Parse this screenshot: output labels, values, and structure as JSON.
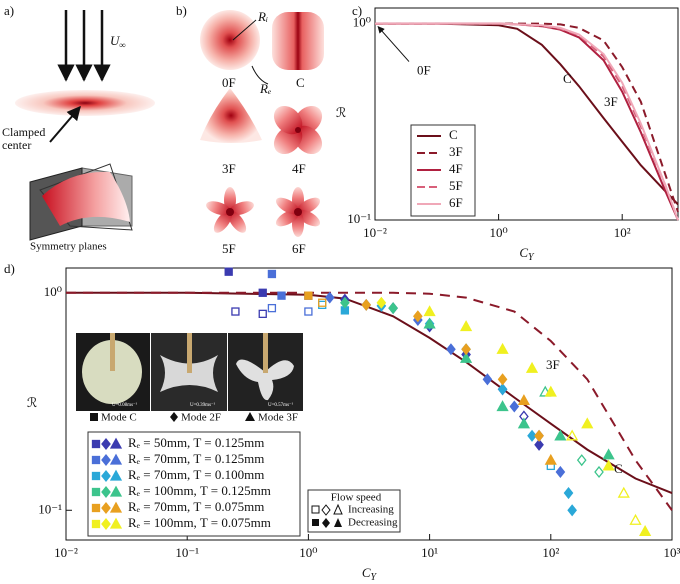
{
  "panels": {
    "a": {
      "label": "a)",
      "velocity_symbol": "U",
      "velocity_sub": "∞",
      "clamp_label": "Clamped center",
      "symmetry_label": "Symmetry planes"
    },
    "b": {
      "label": "b)",
      "inner_radius": "Rᵢ",
      "outer_radius": "Rₑ",
      "modes": [
        "0F",
        "C",
        "3F",
        "4F",
        "5F",
        "6F"
      ]
    }
  },
  "chart_data": [
    {
      "type": "line",
      "label": "c)",
      "xlabel": "C",
      "xlabel_sub": "Y",
      "ylabel": "ℛ",
      "log_x": true,
      "log_y": true,
      "xlim": [
        0.01,
        800
      ],
      "ylim": [
        0.1,
        1.2
      ],
      "xticks": [
        {
          "value": 0.01,
          "label": "10⁻²"
        },
        {
          "value": 1,
          "label": "10⁰"
        },
        {
          "value": 100,
          "label": "10²"
        }
      ],
      "yticks": [
        {
          "value": 0.1,
          "label": "10⁻¹"
        },
        {
          "value": 1,
          "label": "10⁰"
        }
      ],
      "x": [
        0.01,
        0.1,
        1,
        2,
        5,
        10,
        20,
        50,
        100,
        200,
        500,
        800
      ],
      "series": [
        {
          "name": "C",
          "color": "#6b0f1a",
          "dash": false,
          "values": [
            1,
            1,
            0.98,
            0.94,
            0.78,
            0.62,
            0.48,
            0.33,
            0.25,
            0.19,
            0.14,
            0.12
          ]
        },
        {
          "name": "3F",
          "color": "#8b1a2a",
          "dash": true,
          "values": [
            1,
            1,
            1,
            1,
            1,
            0.99,
            0.95,
            0.82,
            0.6,
            0.4,
            0.17,
            0.11
          ]
        },
        {
          "name": "4F",
          "color": "#b02040",
          "dash": false,
          "values": [
            1,
            1,
            1,
            0.99,
            0.97,
            0.93,
            0.85,
            0.65,
            0.45,
            0.28,
            0.14,
            0.1
          ]
        },
        {
          "name": "5F",
          "color": "#d8607a",
          "dash": true,
          "values": [
            1,
            1,
            1,
            0.99,
            0.97,
            0.94,
            0.87,
            0.68,
            0.48,
            0.3,
            0.15,
            0.1
          ]
        },
        {
          "name": "6F",
          "color": "#f0a8b8",
          "dash": false,
          "values": [
            1,
            1,
            1,
            0.99,
            0.98,
            0.95,
            0.88,
            0.7,
            0.5,
            0.31,
            0.15,
            0.1
          ]
        }
      ],
      "legend": "lower left",
      "annotations": [
        "0F",
        "C",
        "3F"
      ]
    },
    {
      "type": "scatter",
      "label": "d)",
      "xlabel": "C",
      "xlabel_sub": "Y",
      "ylabel": "ℛ",
      "log_x": true,
      "log_y": true,
      "xlim": [
        0.01,
        1000
      ],
      "ylim": [
        0.073,
        1.3
      ],
      "xticks": [
        {
          "value": 0.01,
          "label": "10⁻²"
        },
        {
          "value": 0.1,
          "label": "10⁻¹"
        },
        {
          "value": 1,
          "label": "10⁰"
        },
        {
          "value": 10,
          "label": "10¹"
        },
        {
          "value": 100,
          "label": "10²"
        },
        {
          "value": 1000,
          "label": "10³"
        }
      ],
      "yticks": [
        {
          "value": 0.1,
          "label": "10⁻¹"
        },
        {
          "value": 1,
          "label": "10⁰"
        }
      ],
      "curve_x": [
        0.01,
        0.1,
        1,
        2,
        5,
        10,
        20,
        50,
        100,
        200,
        500,
        1000
      ],
      "curves": [
        {
          "name": "C",
          "color": "#6b0f1a",
          "dash": false,
          "values": [
            1,
            1,
            0.98,
            0.94,
            0.78,
            0.62,
            0.48,
            0.33,
            0.25,
            0.19,
            0.14,
            0.12
          ]
        },
        {
          "name": "3F",
          "color": "#8b1a2a",
          "dash": true,
          "values": [
            1,
            1,
            1,
            1,
            1,
            0.99,
            0.95,
            0.82,
            0.6,
            0.4,
            0.17,
            0.1
          ]
        }
      ],
      "series": [
        {
          "name": "Rₑ = 50mm,   T = 0.125mm",
          "color": "#3b3bb0",
          "x": [
            0.22,
            0.42,
            0.42,
            0.25,
            1.0,
            2,
            5,
            10,
            20,
            40,
            60,
            80
          ],
          "values": [
            1.25,
            1.0,
            0.8,
            0.82,
            0.97,
            0.93,
            0.85,
            0.7,
            0.52,
            0.36,
            0.27,
            0.2
          ],
          "markers": [
            "s",
            "s",
            "s",
            "s",
            "s",
            "d",
            "d",
            "d",
            "d",
            "d",
            "d",
            "d"
          ],
          "filled": [
            true,
            true,
            false,
            false,
            true,
            true,
            true,
            true,
            true,
            true,
            false,
            true
          ]
        },
        {
          "name": "Rₑ = 70mm,   T = 0.125mm",
          "color": "#4a6fd8",
          "x": [
            0.5,
            0.6,
            0.5,
            1,
            1.5,
            3,
            8,
            15,
            30,
            50,
            80,
            120
          ],
          "values": [
            1.22,
            0.97,
            0.85,
            0.82,
            0.95,
            0.88,
            0.75,
            0.55,
            0.4,
            0.3,
            0.22,
            0.15
          ],
          "markers": [
            "s",
            "s",
            "s",
            "s",
            "d",
            "d",
            "d",
            "d",
            "d",
            "d",
            "d",
            "d"
          ],
          "filled": [
            true,
            true,
            false,
            false,
            true,
            true,
            true,
            true,
            true,
            true,
            false,
            true
          ]
        },
        {
          "name": "Rₑ = 70mm,   T = 0.100mm",
          "color": "#2aa8d8",
          "x": [
            1.3,
            2,
            4,
            10,
            20,
            40,
            70,
            100,
            140,
            150
          ],
          "values": [
            0.88,
            0.83,
            0.87,
            0.72,
            0.55,
            0.36,
            0.22,
            0.16,
            0.12,
            0.1
          ],
          "markers": [
            "s",
            "s",
            "d",
            "d",
            "d",
            "d",
            "d",
            "s",
            "d",
            "d"
          ],
          "filled": [
            false,
            true,
            true,
            true,
            true,
            true,
            true,
            false,
            true,
            true
          ]
        },
        {
          "name": "Rₑ = 100mm,   T = 0.125mm",
          "color": "#3cc48c",
          "x": [
            2,
            5,
            10,
            20,
            40,
            60,
            90,
            120,
            180,
            250,
            300
          ],
          "values": [
            0.9,
            0.85,
            0.72,
            0.5,
            0.3,
            0.25,
            0.35,
            0.22,
            0.17,
            0.15,
            0.18
          ],
          "markers": [
            "d",
            "d",
            "t",
            "t",
            "t",
            "t",
            "t",
            "t",
            "d",
            "d",
            "t"
          ],
          "filled": [
            true,
            true,
            true,
            true,
            true,
            true,
            false,
            true,
            false,
            false,
            true
          ]
        },
        {
          "name": "Rₑ = 70mm,   T = 0.075mm",
          "color": "#e8a020",
          "x": [
            1,
            1.3,
            3,
            8,
            20,
            40,
            60,
            80,
            100
          ],
          "values": [
            0.97,
            0.9,
            0.88,
            0.78,
            0.55,
            0.4,
            0.32,
            0.22,
            0.17
          ],
          "markers": [
            "s",
            "s",
            "d",
            "d",
            "d",
            "d",
            "t",
            "d",
            "t"
          ],
          "filled": [
            true,
            false,
            true,
            true,
            true,
            true,
            true,
            true,
            true
          ]
        },
        {
          "name": "Rₑ = 100mm,   T = 0.075mm",
          "color": "#f0f020",
          "x": [
            4,
            10,
            20,
            40,
            70,
            100,
            150,
            200,
            300,
            400,
            500,
            600
          ],
          "values": [
            0.9,
            0.82,
            0.7,
            0.55,
            0.45,
            0.35,
            0.22,
            0.25,
            0.16,
            0.12,
            0.09,
            0.08
          ],
          "markers": [
            "d",
            "t",
            "t",
            "t",
            "t",
            "t",
            "t",
            "t",
            "t",
            "t",
            "t",
            "t"
          ],
          "filled": [
            true,
            true,
            true,
            true,
            true,
            true,
            false,
            true,
            true,
            false,
            false,
            true
          ]
        }
      ],
      "legend": "lower left",
      "inset": {
        "captions": [
          "Mode C",
          "Mode 2F",
          "Mode 3F"
        ],
        "speeds": [
          "U=0.08ms⁻¹",
          "U=0.39ms⁻¹",
          "U=0.57ms⁻¹"
        ]
      },
      "flow_legend": {
        "title": "Flow speed",
        "increasing": "Increasing",
        "decreasing": "Decreasing"
      }
    }
  ]
}
